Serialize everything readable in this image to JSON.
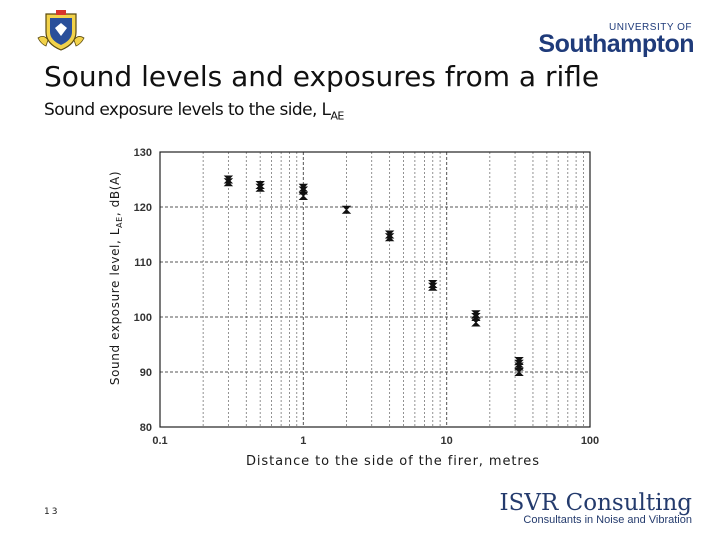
{
  "header": {
    "university_small": "UNIVERSITY OF",
    "university_big": "Southampton",
    "title": "Sound levels and exposures from a rifle",
    "subtitle": "Sound exposure levels to the side, L",
    "subtitle_sub": "AE"
  },
  "footer": {
    "page_number": "13",
    "brand": "ISVR Consulting",
    "tagline": "Consultants in Noise and Vibration"
  },
  "colors": {
    "uni_blue": "#1f3b7a",
    "isvr_blue": "#243b6d",
    "marker": "#111111"
  },
  "chart_data": {
    "type": "scatter",
    "title": "",
    "xlabel": "Distance to the side of the firer, metres",
    "ylabel_main": "Sound exposure level, L",
    "ylabel_sub": "AE",
    "ylabel_unit": ", dB(A)",
    "x_scale": "log",
    "xlim": [
      0.1,
      100
    ],
    "ylim": [
      80,
      130
    ],
    "x_ticks": [
      0.1,
      1,
      10,
      100
    ],
    "x_tick_labels": [
      "0.1",
      "1",
      "10",
      "100"
    ],
    "y_ticks": [
      80,
      90,
      100,
      110,
      120,
      130
    ],
    "y_tick_labels": [
      "80",
      "90",
      "100",
      "110",
      "120",
      "130"
    ],
    "grid": true,
    "series": [
      {
        "x": [
          0.3,
          0.3,
          0.5,
          0.5,
          1,
          1,
          1,
          2,
          4,
          4,
          8,
          8,
          16,
          16,
          16,
          32,
          32,
          32,
          32
        ],
        "y": [
          124.5,
          125,
          123.5,
          124,
          122,
          123,
          123.5,
          119.5,
          114.5,
          115,
          105.5,
          106,
          99,
          100,
          100.5,
          90,
          91,
          92,
          91.5
        ]
      }
    ]
  }
}
